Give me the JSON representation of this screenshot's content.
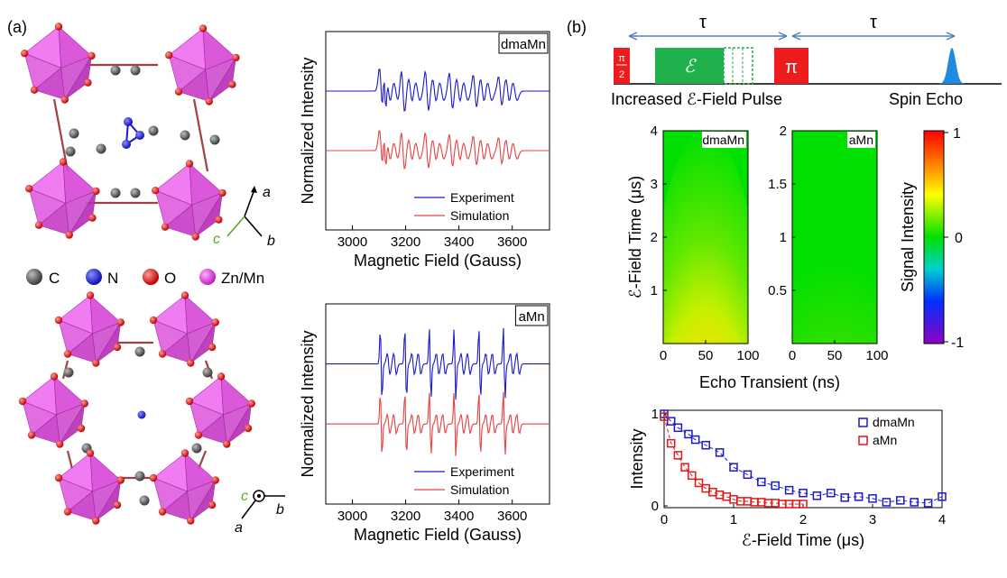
{
  "panel_a": {
    "label": "(a)",
    "legend": [
      {
        "symbol": "C",
        "color": "#5a5a5a"
      },
      {
        "symbol": "N",
        "color": "#2430d8"
      },
      {
        "symbol": "O",
        "color": "#e01818"
      },
      {
        "symbol": "Zn/Mn",
        "color": "#e040e0"
      }
    ],
    "axes_top": {
      "a": "a",
      "b": "b",
      "c": "c"
    },
    "axes_bottom": {
      "a": "a",
      "b": "b",
      "c": "c"
    }
  },
  "panel_b": {
    "label": "(b)",
    "tau1": "τ",
    "tau2": "τ",
    "pi_half_num": "π",
    "pi_half_den": "2",
    "e_pulse": "ℰ",
    "pi": "π",
    "pulse_caption": "Increased ℰ-Field Pulse",
    "echo_caption": "Spin Echo"
  },
  "colorbar": {
    "label": "Signal Intensity",
    "ticks": [
      "1",
      "0",
      "-1"
    ]
  },
  "heatmap_xlabel": "Echo Transient (ns)",
  "heatmap_ylabel": "ℰ-Field Time (μs)",
  "chart_data": [
    {
      "id": "epr-dmaMn",
      "type": "line",
      "tag": "dmaMn",
      "xlabel": "Magnetic Field (Gauss)",
      "ylabel": "Normalized Intensity",
      "xticks": [
        "3000",
        "3200",
        "3400",
        "3600"
      ],
      "xlim": [
        2900,
        3740
      ],
      "legend_position": "bottom-right",
      "series": [
        {
          "name": "Experiment",
          "color": "#1a1acc",
          "offset": 1.0
        },
        {
          "name": "Simulation",
          "color": "#e84040",
          "offset": 0.0
        }
      ]
    },
    {
      "id": "epr-aMn",
      "type": "line",
      "tag": "aMn",
      "xlabel": "Magnetic Field (Gauss)",
      "ylabel": "Normalized Intensity",
      "xticks": [
        "3000",
        "3200",
        "3400",
        "3600"
      ],
      "xlim": [
        2900,
        3740
      ],
      "legend_position": "bottom-right",
      "series": [
        {
          "name": "Experiment",
          "color": "#1a1acc",
          "offset": 1.0
        },
        {
          "name": "Simulation",
          "color": "#e84040",
          "offset": 0.0
        }
      ]
    },
    {
      "id": "heat-dmaMn",
      "type": "heatmap",
      "tag": "dmaMn",
      "xlim": [
        0,
        100
      ],
      "ylim": [
        0,
        4
      ],
      "xticks": [
        "0",
        "50",
        "100"
      ],
      "yticks": [
        "1",
        "2",
        "3",
        "4"
      ]
    },
    {
      "id": "heat-aMn",
      "type": "heatmap",
      "tag": "aMn",
      "xlim": [
        0,
        100
      ],
      "ylim": [
        0,
        2
      ],
      "xticks": [
        "0",
        "50",
        "100"
      ],
      "yticks": [
        "0.5",
        "1",
        "1.5",
        "2"
      ]
    },
    {
      "id": "decay",
      "type": "scatter",
      "xlabel": "ℰ-Field Time (μs)",
      "ylabel": "Intensity",
      "xlim": [
        0,
        4
      ],
      "ylim": [
        0,
        1
      ],
      "xticks": [
        "0",
        "1",
        "2",
        "3",
        "4"
      ],
      "yticks": [
        "0",
        "1"
      ],
      "legend_position": "top-right",
      "series": [
        {
          "name": "dmaMn",
          "color": "#1a1acc",
          "x": [
            0.0,
            0.1,
            0.2,
            0.35,
            0.45,
            0.6,
            0.8,
            1.0,
            1.2,
            1.4,
            1.6,
            1.8,
            2.0,
            2.2,
            2.4,
            2.6,
            2.8,
            3.0,
            3.2,
            3.4,
            3.6,
            3.8,
            4.0
          ],
          "y": [
            1.0,
            0.92,
            0.85,
            0.78,
            0.72,
            0.66,
            0.58,
            0.42,
            0.34,
            0.26,
            0.22,
            0.17,
            0.14,
            0.11,
            0.14,
            0.09,
            0.1,
            0.08,
            0.04,
            0.06,
            0.04,
            0.03,
            0.1
          ]
        },
        {
          "name": "aMn",
          "color": "#e01818",
          "x": [
            0.0,
            0.1,
            0.2,
            0.3,
            0.4,
            0.5,
            0.6,
            0.7,
            0.8,
            0.9,
            1.0,
            1.1,
            1.2,
            1.3,
            1.4,
            1.5,
            1.6,
            1.7,
            1.8,
            1.9,
            2.0
          ],
          "y": [
            0.97,
            0.68,
            0.55,
            0.42,
            0.33,
            0.25,
            0.19,
            0.15,
            0.12,
            0.1,
            0.07,
            0.05,
            0.05,
            0.04,
            0.04,
            0.03,
            0.03,
            0.02,
            0.02,
            0.02,
            0.02
          ]
        }
      ]
    }
  ]
}
